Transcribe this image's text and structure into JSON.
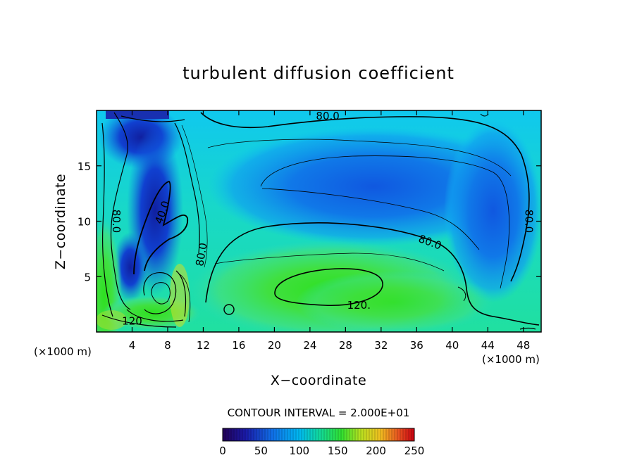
{
  "chart_data": {
    "type": "heatmap",
    "title": "turbulent diffusion coefficient",
    "xlabel": "X−coordinate",
    "ylabel": "Z−coordinate",
    "x_unit": "(×1000 m)",
    "x_unit_right": "(×1000 m)",
    "y_unit": "(×1000 m)",
    "xlim": [
      0,
      50
    ],
    "ylim": [
      0,
      20
    ],
    "x_ticks": [
      4,
      8,
      12,
      16,
      20,
      24,
      28,
      32,
      36,
      40,
      44,
      48
    ],
    "y_ticks": [
      5,
      10,
      15
    ],
    "contour_interval_text": "CONTOUR INTERVAL = 2.000E+01",
    "contour_labels": [
      {
        "text": "80.0",
        "x": 26,
        "z": 19.5
      },
      {
        "text": "40.0",
        "x": 7.4,
        "z": 10.8
      },
      {
        "text": "80.0",
        "x": 2.2,
        "z": 10.0
      },
      {
        "text": "80.0",
        "x": 11.8,
        "z": 7.0
      },
      {
        "text": "80.0",
        "x": 37.5,
        "z": 8.1
      },
      {
        "text": "80.0",
        "x": 48.6,
        "z": 10.0
      },
      {
        "text": "120.",
        "x": 29.5,
        "z": 2.4
      },
      {
        "text": "120",
        "x": 4.0,
        "z": 1.0
      }
    ],
    "grid": false,
    "colorbar": {
      "min": 0,
      "max": 250,
      "tick_labels": [
        "0",
        "50",
        "100",
        "150",
        "200",
        "250"
      ],
      "tick_values": [
        0,
        50,
        100,
        150,
        200,
        250
      ]
    }
  }
}
